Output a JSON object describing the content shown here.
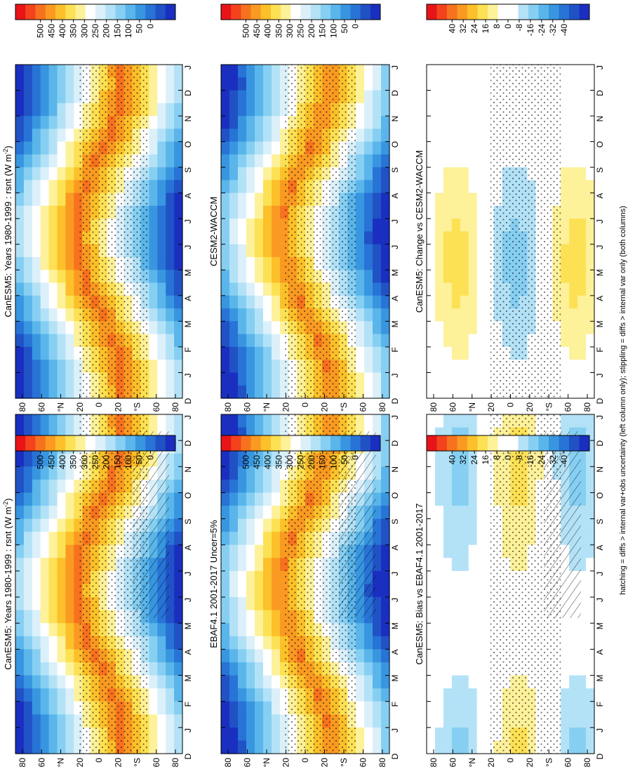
{
  "footnote": "hatching = diffs > internal var+obs uncertainty (left column only); stippling = diffs > internal var only (both columns)",
  "scales": {
    "abs": {
      "ticks": [
        "500",
        "450",
        "400",
        "350",
        "300",
        "250",
        "200",
        "150",
        "100",
        "50",
        "0"
      ],
      "colors": [
        "#e8141a",
        "#f2431d",
        "#f7721f",
        "#fa9a22",
        "#fcc02a",
        "#fde154",
        "#fdf19a",
        "#ffffff",
        "#dcf0fa",
        "#b3e2f7",
        "#86cff2",
        "#5ab5ea",
        "#3896e0",
        "#2873d6",
        "#2052c6",
        "#1a2fc0"
      ]
    },
    "diff": {
      "ticks": [
        "40",
        "32",
        "24",
        "16",
        "8",
        "0",
        "-8",
        "-16",
        "-24",
        "-32",
        "-40"
      ],
      "colors": [
        "#e8141a",
        "#f2431d",
        "#f7721f",
        "#fa9a22",
        "#fcc02a",
        "#fde154",
        "#fdf19a",
        "#ffffff",
        "#ffffff",
        "#b3e2f7",
        "#86cff2",
        "#5ab5ea",
        "#3896e0",
        "#2873d6",
        "#2052c6",
        "#1a2fc0"
      ]
    }
  },
  "axes": {
    "months": [
      "D",
      "J",
      "F",
      "M",
      "A",
      "M",
      "J",
      "J",
      "A",
      "S",
      "O",
      "N",
      "D",
      "J"
    ],
    "lat_labels": [
      "80",
      "60",
      "°N",
      "20",
      "0",
      "20",
      "°S",
      "60",
      "80"
    ]
  },
  "panels": [
    {
      "id": "left-top",
      "title": "CanESM5: Years 1980-1999 : rsnt (W m",
      "title_sup": "-2",
      "title_end": ")",
      "scale": "abs",
      "hatching": true,
      "stippling": true
    },
    {
      "id": "left-middle",
      "title": "EBAF4.1 2001-2017 Uncer=5%",
      "scale": "abs",
      "hatching": true,
      "stippling": true
    },
    {
      "id": "left-bottom",
      "title": "CanESM5: Bias vs EBAF4.1 2001-2017",
      "scale": "diff",
      "hatching": true,
      "stippling": true
    },
    {
      "id": "right-top",
      "title": "CanESM5: Years 1980-1999 : rsnt (W m",
      "title_sup": "-2",
      "title_end": ")",
      "scale": "abs",
      "hatching": false,
      "stippling": true
    },
    {
      "id": "right-middle",
      "title": "CESM2-WACCM",
      "scale": "abs",
      "hatching": false,
      "stippling": true
    },
    {
      "id": "right-bottom",
      "title": "CanESM5: Change vs CESM2-WACCM",
      "scale": "diff",
      "hatching": false,
      "stippling": true
    }
  ],
  "chart_data": [
    {
      "type": "heatmap",
      "title": "CanESM5: Years 1980-1999 : rsnt (W m-2)",
      "x_categories": [
        "D",
        "J",
        "F",
        "M",
        "A",
        "M",
        "J",
        "J",
        "A",
        "S",
        "O",
        "N",
        "D",
        "J"
      ],
      "y_tick_labels": [
        "80",
        "60",
        "°N",
        "20",
        "0",
        "20",
        "°S",
        "60",
        "80"
      ],
      "colorbar": {
        "ticks": [
          500,
          450,
          400,
          350,
          300,
          250,
          200,
          150,
          100,
          50,
          0
        ]
      },
      "overlay": "hatching and stippling"
    },
    {
      "type": "heatmap",
      "title": "EBAF4.1 2001-2017 Uncer=5%",
      "x_categories": [
        "D",
        "J",
        "F",
        "M",
        "A",
        "M",
        "J",
        "J",
        "A",
        "S",
        "O",
        "N",
        "D",
        "J"
      ],
      "y_tick_labels": [
        "80",
        "60",
        "°N",
        "20",
        "0",
        "20",
        "°S",
        "60",
        "80"
      ],
      "colorbar": {
        "ticks": [
          500,
          450,
          400,
          350,
          300,
          250,
          200,
          150,
          100,
          50,
          0
        ]
      },
      "overlay": "hatching and stippling"
    },
    {
      "type": "heatmap",
      "title": "CanESM5: Bias vs EBAF4.1 2001-2017",
      "x_categories": [
        "D",
        "J",
        "F",
        "M",
        "A",
        "M",
        "J",
        "J",
        "A",
        "S",
        "O",
        "N",
        "D",
        "J"
      ],
      "y_tick_labels": [
        "80",
        "60",
        "°N",
        "20",
        "0",
        "20",
        "°S",
        "60",
        "80"
      ],
      "colorbar": {
        "ticks": [
          40,
          32,
          24,
          16,
          8,
          0,
          -8,
          -16,
          -24,
          -32,
          -40
        ]
      },
      "overlay": "hatching and stippling"
    },
    {
      "type": "heatmap",
      "title": "CanESM5: Years 1980-1999 : rsnt (W m-2)",
      "x_categories": [
        "D",
        "J",
        "F",
        "M",
        "A",
        "M",
        "J",
        "J",
        "A",
        "S",
        "O",
        "N",
        "D",
        "J"
      ],
      "y_tick_labels": [
        "80",
        "60",
        "°N",
        "20",
        "0",
        "20",
        "°S",
        "60",
        "80"
      ],
      "colorbar": {
        "ticks": [
          500,
          450,
          400,
          350,
          300,
          250,
          200,
          150,
          100,
          50,
          0
        ]
      },
      "overlay": "stippling"
    },
    {
      "type": "heatmap",
      "title": "CESM2-WACCM",
      "x_categories": [
        "D",
        "J",
        "F",
        "M",
        "A",
        "M",
        "J",
        "J",
        "A",
        "S",
        "O",
        "N",
        "D",
        "J"
      ],
      "y_tick_labels": [
        "80",
        "60",
        "°N",
        "20",
        "0",
        "20",
        "°S",
        "60",
        "80"
      ],
      "colorbar": {
        "ticks": [
          500,
          450,
          400,
          350,
          300,
          250,
          200,
          150,
          100,
          50,
          0
        ]
      },
      "overlay": "stippling"
    },
    {
      "type": "heatmap",
      "title": "CanESM5: Change vs CESM2-WACCM",
      "x_categories": [
        "D",
        "J",
        "F",
        "M",
        "A",
        "M",
        "J",
        "J",
        "A",
        "S",
        "O",
        "N",
        "D",
        "J"
      ],
      "y_tick_labels": [
        "80",
        "60",
        "°N",
        "20",
        "0",
        "20",
        "°S",
        "60",
        "80"
      ],
      "colorbar": {
        "ticks": [
          40,
          32,
          24,
          16,
          8,
          0,
          -8,
          -16,
          -24,
          -32,
          -40
        ]
      },
      "overlay": "stippling"
    }
  ]
}
